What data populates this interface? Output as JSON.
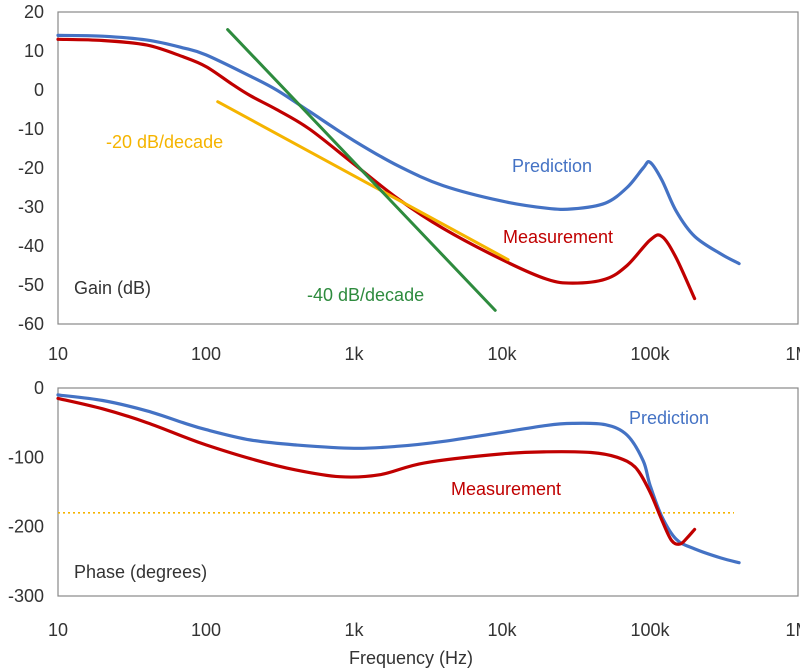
{
  "chart_data": [
    {
      "type": "line",
      "id": "gain",
      "x_scale": "log",
      "xlim": [
        10,
        1000000
      ],
      "ylim": [
        -60,
        20
      ],
      "x_ticks": [
        10,
        100,
        1000,
        10000,
        100000,
        1000000
      ],
      "x_tick_labels": [
        "10",
        "100",
        "1k",
        "10k",
        "100k",
        "1M"
      ],
      "y_ticks": [
        20,
        10,
        0,
        -10,
        -20,
        -30,
        -40,
        -50,
        -60
      ],
      "y_tick_labels": [
        "20",
        "10",
        "0",
        "-10",
        "-20",
        "-30",
        "-40",
        "-50",
        "-60"
      ],
      "panel_label": "Gain (dB)",
      "grid": false,
      "series": [
        {
          "name": "Prediction",
          "color": "#4472C4",
          "points": [
            [
              10,
              14
            ],
            [
              20,
              13.8
            ],
            [
              40,
              12.8
            ],
            [
              70,
              10.8
            ],
            [
              100,
              9
            ],
            [
              200,
              3.5
            ],
            [
              300,
              0
            ],
            [
              500,
              -5.5
            ],
            [
              1000,
              -13
            ],
            [
              2000,
              -19.5
            ],
            [
              4000,
              -24.5
            ],
            [
              10000,
              -28.5
            ],
            [
              20000,
              -30.3
            ],
            [
              30000,
              -30.5
            ],
            [
              50000,
              -29
            ],
            [
              70000,
              -25
            ],
            [
              90000,
              -20
            ],
            [
              100000,
              -18.5
            ],
            [
              120000,
              -23
            ],
            [
              150000,
              -31
            ],
            [
              200000,
              -37.5
            ],
            [
              300000,
              -42
            ],
            [
              400000,
              -44.5
            ]
          ]
        },
        {
          "name": "Measurement",
          "color": "#C00000",
          "points": [
            [
              10,
              13
            ],
            [
              20,
              12.7
            ],
            [
              40,
              11.5
            ],
            [
              70,
              8.5
            ],
            [
              100,
              6
            ],
            [
              150,
              1.5
            ],
            [
              200,
              -1.5
            ],
            [
              300,
              -5
            ],
            [
              500,
              -10
            ],
            [
              1000,
              -19
            ],
            [
              2000,
              -28
            ],
            [
              4000,
              -35.5
            ],
            [
              10000,
              -43.5
            ],
            [
              20000,
              -48.5
            ],
            [
              30000,
              -49.5
            ],
            [
              50000,
              -48.5
            ],
            [
              70000,
              -45
            ],
            [
              100000,
              -38.5
            ],
            [
              120000,
              -37.5
            ],
            [
              150000,
              -43
            ],
            [
              200000,
              -53.5
            ]
          ]
        },
        {
          "name": "-20 dB/decade",
          "color": "#F5B400",
          "points": [
            [
              120,
              -3
            ],
            [
              11000,
              -43.5
            ]
          ]
        },
        {
          "name": "-40 dB/decade",
          "color": "#2E8B3E",
          "points": [
            [
              140,
              15.5
            ],
            [
              9000,
              -56.5
            ]
          ]
        }
      ],
      "series_labels": [
        "Prediction",
        "Measurement",
        "-20 dB/decade",
        "-40 dB/decade"
      ]
    },
    {
      "type": "line",
      "id": "phase",
      "x_scale": "log",
      "xlim": [
        10,
        1000000
      ],
      "ylim": [
        -300,
        0
      ],
      "x_ticks": [
        10,
        100,
        1000,
        10000,
        100000,
        1000000
      ],
      "x_tick_labels": [
        "10",
        "100",
        "1k",
        "10k",
        "100k",
        "1M"
      ],
      "y_ticks": [
        0,
        -100,
        -200,
        -300
      ],
      "y_tick_labels": [
        "0",
        "-100",
        "-200",
        "-300"
      ],
      "panel_label": "Phase (degrees)",
      "xlabel": "Frequency (Hz)",
      "grid": false,
      "reference_line": {
        "y": -180,
        "color": "#F5B400",
        "style": "dotted"
      },
      "series": [
        {
          "name": "Prediction",
          "color": "#4472C4",
          "points": [
            [
              10,
              -10
            ],
            [
              20,
              -18
            ],
            [
              40,
              -33
            ],
            [
              70,
              -50
            ],
            [
              100,
              -60
            ],
            [
              200,
              -75
            ],
            [
              400,
              -82
            ],
            [
              1000,
              -87
            ],
            [
              2000,
              -84
            ],
            [
              4000,
              -77
            ],
            [
              10000,
              -64
            ],
            [
              20000,
              -54
            ],
            [
              30000,
              -51
            ],
            [
              50000,
              -53
            ],
            [
              70000,
              -68
            ],
            [
              90000,
              -105
            ],
            [
              100000,
              -140
            ],
            [
              120000,
              -185
            ],
            [
              150000,
              -218
            ],
            [
              200000,
              -232
            ],
            [
              300000,
              -245
            ],
            [
              400000,
              -252
            ]
          ]
        },
        {
          "name": "Measurement",
          "color": "#C00000",
          "points": [
            [
              10,
              -15
            ],
            [
              20,
              -30
            ],
            [
              40,
              -50
            ],
            [
              70,
              -70
            ],
            [
              100,
              -82
            ],
            [
              200,
              -102
            ],
            [
              400,
              -118
            ],
            [
              800,
              -128
            ],
            [
              1500,
              -125
            ],
            [
              3000,
              -108
            ],
            [
              10000,
              -95
            ],
            [
              20000,
              -92
            ],
            [
              40000,
              -93
            ],
            [
              60000,
              -100
            ],
            [
              80000,
              -115
            ],
            [
              100000,
              -150
            ],
            [
              120000,
              -190
            ],
            [
              140000,
              -220
            ],
            [
              160000,
              -225
            ],
            [
              180000,
              -215
            ],
            [
              200000,
              -204
            ]
          ]
        }
      ],
      "series_labels": [
        "Prediction",
        "Measurement"
      ]
    }
  ]
}
